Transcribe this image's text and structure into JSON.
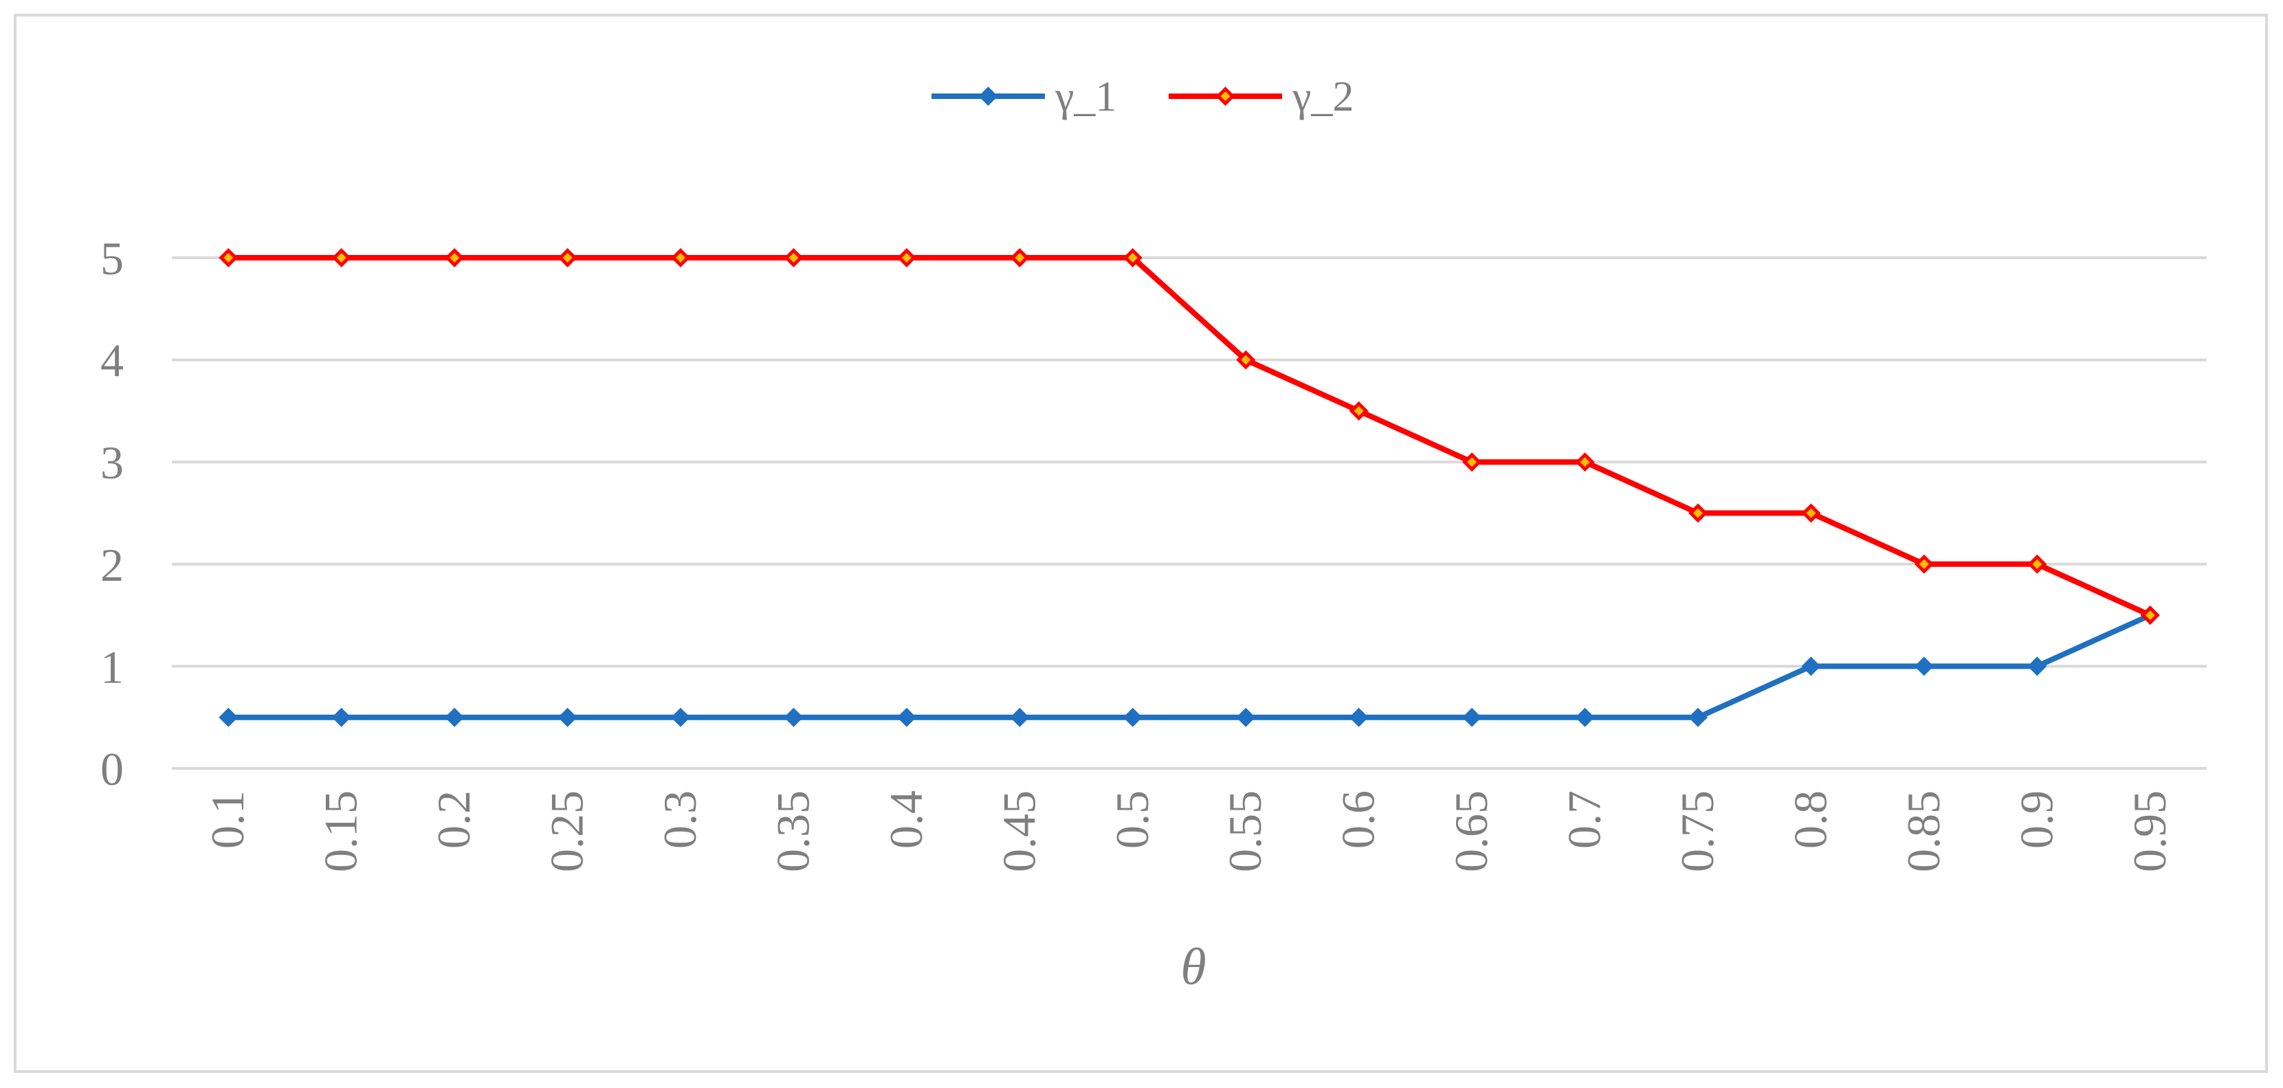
{
  "chart_data": {
    "type": "line",
    "title": "",
    "xlabel": "θ",
    "ylabel": "",
    "categories": [
      "0.1",
      "0.15",
      "0.2",
      "0.25",
      "0.3",
      "0.35",
      "0.4",
      "0.45",
      "0.5",
      "0.55",
      "0.6",
      "0.65",
      "0.7",
      "0.75",
      "0.8",
      "0.85",
      "0.9",
      "0.95"
    ],
    "y_ticks": [
      "0",
      "1",
      "2",
      "3",
      "4",
      "5"
    ],
    "ylim": [
      0,
      5
    ],
    "grid": "horizontal",
    "legend_position": "top-center",
    "series": [
      {
        "name": "γ_1",
        "color": "#1f70c1",
        "marker": "diamond",
        "values": [
          0.5,
          0.5,
          0.5,
          0.5,
          0.5,
          0.5,
          0.5,
          0.5,
          0.5,
          0.5,
          0.5,
          0.5,
          0.5,
          0.5,
          1,
          1,
          1,
          1.5
        ]
      },
      {
        "name": "γ_2",
        "color": "#ff0000",
        "marker": "diamond",
        "values": [
          5,
          5,
          5,
          5,
          5,
          5,
          5,
          5,
          5,
          4,
          3.5,
          3,
          3,
          2.5,
          2.5,
          2,
          2,
          1.5
        ]
      }
    ]
  }
}
